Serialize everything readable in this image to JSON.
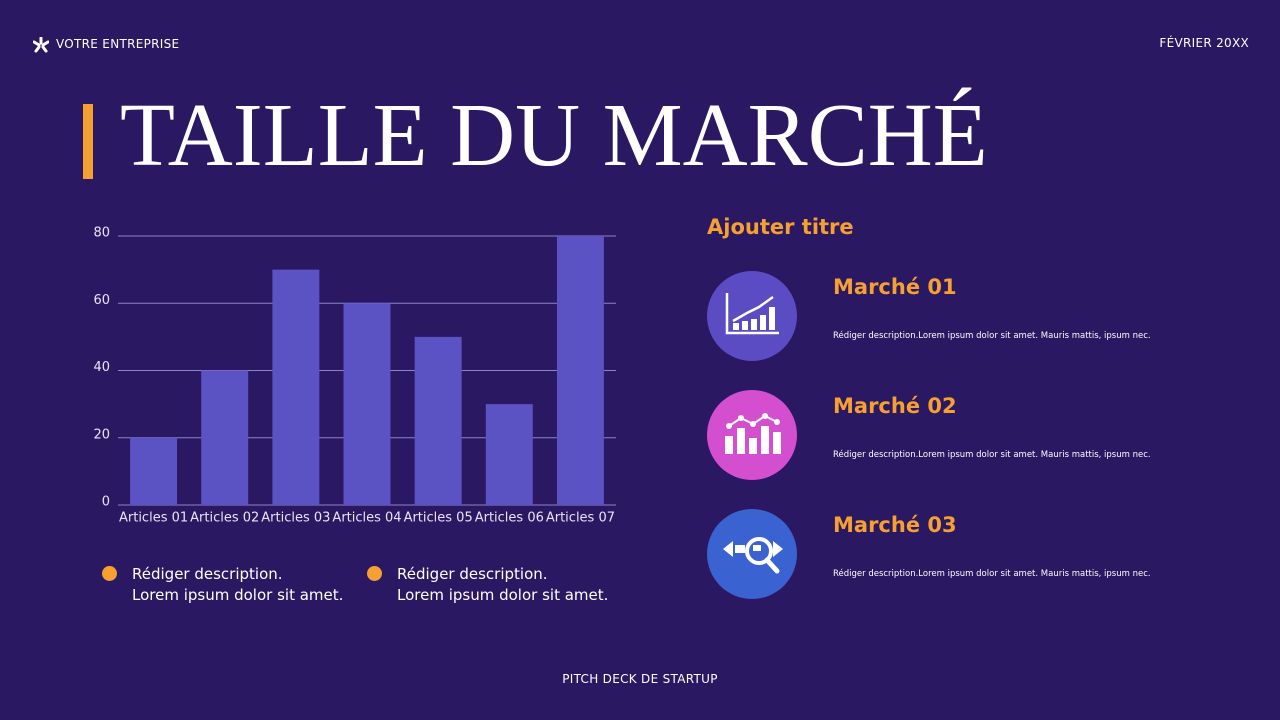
{
  "header": {
    "company": "VOTRE ENTREPRISE",
    "date": "FÉVRIER 20XX"
  },
  "title": "TAILLE DU MARCHÉ",
  "chart_data": {
    "type": "bar",
    "categories": [
      "Articles 01",
      "Articles 02",
      "Articles 03",
      "Articles 04",
      "Articles 05",
      "Articles 06",
      "Articles 07"
    ],
    "values": [
      20,
      40,
      70,
      60,
      50,
      30,
      80
    ],
    "color": "#5b52c4",
    "ylim": [
      0,
      80
    ],
    "yticks": [
      0,
      20,
      40,
      60,
      80
    ],
    "grid": true
  },
  "bullets": [
    [
      "Rédiger description.",
      "Lorem ipsum dolor sit amet."
    ],
    [
      "Rédiger description.",
      "Lorem ipsum dolor sit amet."
    ]
  ],
  "side_title": "Ajouter titre",
  "markets": [
    {
      "title": "Marché 01",
      "description": "Rédiger description.Lorem ipsum dolor sit amet. Mauris mattis, ipsum nec."
    },
    {
      "title": "Marché 02",
      "description": "Rédiger description.Lorem ipsum dolor sit amet. Mauris mattis, ipsum nec."
    },
    {
      "title": "Marché 03",
      "description": "Rédiger description.Lorem ipsum dolor sit amet. Mauris mattis, ipsum nec."
    }
  ],
  "footer": "PITCH DECK DE STARTUP"
}
